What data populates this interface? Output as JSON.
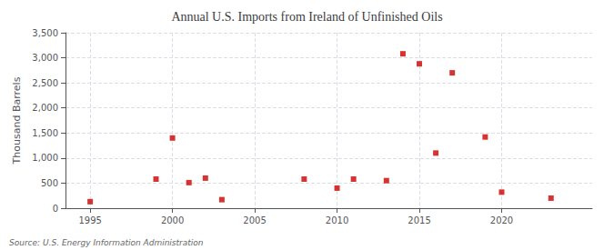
{
  "chart_data": {
    "type": "scatter",
    "title": "Annual U.S. Imports from Ireland of Unfinished Oils",
    "ylabel": "Thousand Barrels",
    "annotations": [
      "Source: U.S. Energy Information Administration"
    ],
    "x": [
      1995,
      1999,
      2000,
      2001,
      2002,
      2003,
      2008,
      2010,
      2011,
      2013,
      2014,
      2015,
      2016,
      2017,
      2019,
      2020,
      2023
    ],
    "values": [
      130,
      580,
      1400,
      510,
      600,
      170,
      580,
      400,
      580,
      550,
      3080,
      2880,
      1100,
      2700,
      1420,
      320,
      200
    ],
    "color": "#cc0000",
    "marker": "square",
    "xlim": [
      1993.5,
      2025.5
    ],
    "xticks": [
      1995,
      2000,
      2005,
      2010,
      2015,
      2020
    ],
    "ylim": [
      0,
      3500
    ],
    "yticks": [
      0,
      500,
      {
        "value": 1000,
        "label": "1,000"
      },
      {
        "value": 1500,
        "label": "1,500"
      },
      {
        "value": 2000,
        "label": "2,000"
      },
      {
        "value": 2500,
        "label": "2,500"
      },
      {
        "value": 3000,
        "label": "3,000"
      },
      {
        "value": 3500,
        "label": "3,500"
      }
    ],
    "grid": true
  }
}
